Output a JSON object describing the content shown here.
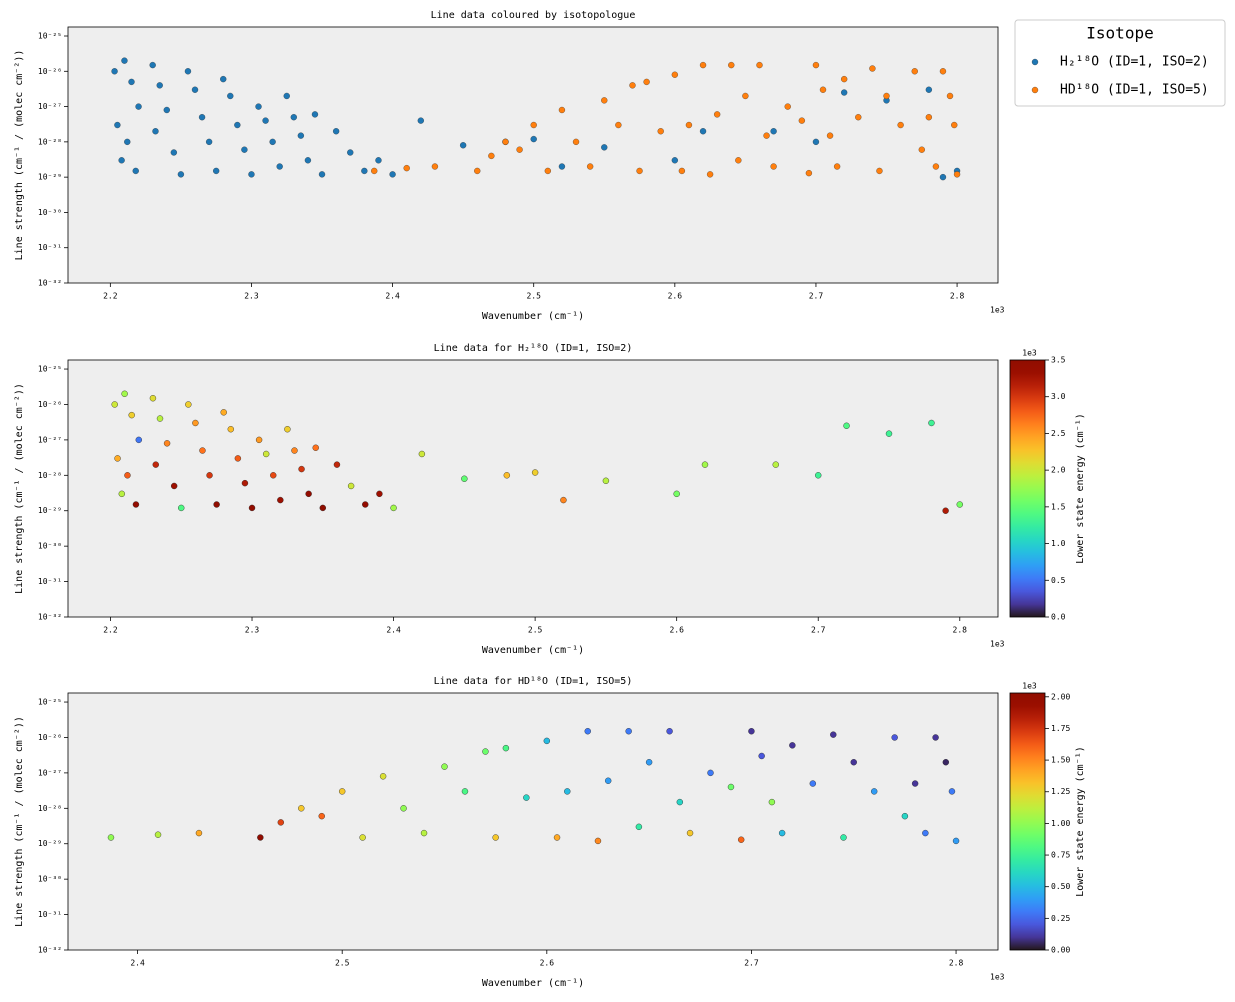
{
  "chart_data": [
    {
      "type": "scatter",
      "title": "Line data coloured by isotopologue",
      "xlabel": "Wavenumber (cm⁻¹)",
      "ylabel": "Line strength (cm⁻¹ / (molec cm⁻²))",
      "x_offset_text": "1e3",
      "xlim": [
        2.17,
        2.829
      ],
      "xticks": [
        2.2,
        2.3,
        2.4,
        2.5,
        2.6,
        2.7,
        2.8
      ],
      "ylim": [
        1e-32,
        1.8e-25
      ],
      "yscale": "log",
      "yticks": [
        {
          "value": 1e-32,
          "label": "10⁻³²"
        },
        {
          "value": 1e-31,
          "label": "10⁻³¹"
        },
        {
          "value": 1e-30,
          "label": "10⁻³⁰"
        },
        {
          "value": 1e-29,
          "label": "10⁻²⁹"
        },
        {
          "value": 1e-28,
          "label": "10⁻²⁸"
        },
        {
          "value": 1e-27,
          "label": "10⁻²⁷"
        },
        {
          "value": 1e-26,
          "label": "10⁻²⁶"
        },
        {
          "value": 1e-25,
          "label": "10⁻²⁵"
        }
      ],
      "legend": "outside-right",
      "legend_title": "Isotope",
      "series": [
        {
          "name": "H₂¹⁸O (ID=1, ISO=2)",
          "color": "#1f77b4",
          "x": [
            2.203,
            2.21,
            2.215,
            2.22,
            2.205,
            2.212,
            2.208,
            2.218,
            2.23,
            2.235,
            2.24,
            2.232,
            2.245,
            2.25,
            2.255,
            2.26,
            2.265,
            2.27,
            2.275,
            2.28,
            2.285,
            2.29,
            2.295,
            2.3,
            2.305,
            2.31,
            2.315,
            2.32,
            2.325,
            2.33,
            2.335,
            2.34,
            2.345,
            2.35,
            2.36,
            2.37,
            2.38,
            2.39,
            2.4,
            2.42,
            2.45,
            2.48,
            2.5,
            2.52,
            2.55,
            2.6,
            2.62,
            2.67,
            2.7,
            2.72,
            2.75,
            2.78,
            2.79,
            2.8
          ],
          "values": [
            1e-26,
            2e-26,
            5e-27,
            1e-27,
            3e-28,
            1e-28,
            3e-29,
            1.5e-29,
            1.5e-26,
            4e-27,
            8e-28,
            2e-28,
            5e-29,
            1.2e-29,
            1e-26,
            3e-27,
            5e-28,
            1e-28,
            1.5e-29,
            6e-27,
            2e-27,
            3e-28,
            6e-29,
            1.2e-29,
            1e-27,
            4e-28,
            1e-28,
            2e-29,
            2e-27,
            5e-28,
            1.5e-28,
            3e-29,
            6e-28,
            1.2e-29,
            2e-28,
            5e-29,
            1.5e-29,
            3e-29,
            1.2e-29,
            4e-28,
            8e-29,
            1e-28,
            1.2e-28,
            2e-29,
            7e-29,
            3e-29,
            2e-28,
            2e-28,
            1e-28,
            2.5e-27,
            1.5e-27,
            3e-27,
            1e-29,
            1.5e-29
          ]
        },
        {
          "name": "HD¹⁸O (ID=1, ISO=5)",
          "color": "#ff7f0e",
          "x": [
            2.387,
            2.41,
            2.43,
            2.46,
            2.47,
            2.48,
            2.49,
            2.5,
            2.51,
            2.52,
            2.53,
            2.54,
            2.55,
            2.56,
            2.57,
            2.575,
            2.58,
            2.59,
            2.6,
            2.605,
            2.61,
            2.62,
            2.625,
            2.63,
            2.64,
            2.645,
            2.65,
            2.66,
            2.665,
            2.67,
            2.68,
            2.69,
            2.695,
            2.7,
            2.705,
            2.71,
            2.715,
            2.72,
            2.73,
            2.74,
            2.745,
            2.75,
            2.76,
            2.77,
            2.775,
            2.78,
            2.785,
            2.79,
            2.795,
            2.798,
            2.8
          ],
          "values": [
            1.5e-29,
            1.8e-29,
            2e-29,
            1.5e-29,
            4e-29,
            1e-28,
            6e-29,
            3e-28,
            1.5e-29,
            8e-28,
            1e-28,
            2e-29,
            1.5e-27,
            3e-28,
            4e-27,
            1.5e-29,
            5e-27,
            2e-28,
            8e-27,
            1.5e-29,
            3e-28,
            1.5e-26,
            1.2e-29,
            6e-28,
            1.5e-26,
            3e-29,
            2e-27,
            1.5e-26,
            1.5e-28,
            2e-29,
            1e-27,
            4e-28,
            1.3e-29,
            1.5e-26,
            3e-27,
            1.5e-28,
            2e-29,
            6e-27,
            5e-28,
            1.2e-26,
            1.5e-29,
            2e-27,
            3e-28,
            1e-26,
            6e-29,
            5e-28,
            2e-29,
            1e-26,
            2e-27,
            3e-28,
            1.2e-29
          ]
        }
      ]
    },
    {
      "type": "scatter",
      "title": "Line data for H₂¹⁸O (ID=1, ISO=2)",
      "xlabel": "Wavenumber (cm⁻¹)",
      "ylabel": "Line strength (cm⁻¹ / (molec cm⁻²))",
      "x_offset_text": "1e3",
      "xlim": [
        2.17,
        2.827
      ],
      "xticks": [
        2.2,
        2.3,
        2.4,
        2.5,
        2.6,
        2.7,
        2.8
      ],
      "ylim": [
        1e-32,
        1.8e-25
      ],
      "yscale": "log",
      "yticks": [
        {
          "value": 1e-32,
          "label": "10⁻³²"
        },
        {
          "value": 1e-31,
          "label": "10⁻³¹"
        },
        {
          "value": 1e-30,
          "label": "10⁻³⁰"
        },
        {
          "value": 1e-29,
          "label": "10⁻²⁹"
        },
        {
          "value": 1e-28,
          "label": "10⁻²⁸"
        },
        {
          "value": 1e-27,
          "label": "10⁻²⁷"
        },
        {
          "value": 1e-26,
          "label": "10⁻²⁶"
        },
        {
          "value": 1e-25,
          "label": "10⁻²⁵"
        }
      ],
      "x": [
        2.203,
        2.21,
        2.215,
        2.22,
        2.205,
        2.212,
        2.208,
        2.218,
        2.23,
        2.235,
        2.24,
        2.232,
        2.245,
        2.25,
        2.255,
        2.26,
        2.265,
        2.27,
        2.275,
        2.28,
        2.285,
        2.29,
        2.295,
        2.3,
        2.305,
        2.31,
        2.315,
        2.32,
        2.325,
        2.33,
        2.335,
        2.34,
        2.345,
        2.35,
        2.36,
        2.37,
        2.38,
        2.39,
        2.4,
        2.42,
        2.45,
        2.48,
        2.5,
        2.52,
        2.55,
        2.6,
        2.62,
        2.67,
        2.7,
        2.72,
        2.75,
        2.78,
        2.79,
        2.8
      ],
      "values": [
        1e-26,
        2e-26,
        5e-27,
        1e-27,
        3e-28,
        1e-28,
        3e-29,
        1.5e-29,
        1.5e-26,
        4e-27,
        8e-28,
        2e-28,
        5e-29,
        1.2e-29,
        1e-26,
        3e-27,
        5e-28,
        1e-28,
        1.5e-29,
        6e-27,
        2e-27,
        3e-28,
        6e-29,
        1.2e-29,
        1e-27,
        4e-28,
        1e-28,
        2e-29,
        2e-27,
        5e-28,
        1.5e-28,
        3e-29,
        6e-28,
        1.2e-29,
        2e-28,
        5e-29,
        1.5e-29,
        3e-29,
        1.2e-29,
        4e-28,
        8e-29,
        1e-28,
        1.2e-28,
        2e-29,
        7e-29,
        3e-29,
        2e-28,
        2e-28,
        1e-28,
        2.5e-27,
        1.5e-27,
        3e-27,
        1e-29,
        1.5e-29
      ],
      "c": [
        2.0,
        1.8,
        2.2,
        0.5,
        2.4,
        2.8,
        1.9,
        3.4,
        2.1,
        1.9,
        2.6,
        3.1,
        3.3,
        1.4,
        2.2,
        2.5,
        2.7,
        3.0,
        3.5,
        2.4,
        2.3,
        2.8,
        3.2,
        3.4,
        2.5,
        2.0,
        2.9,
        3.3,
        2.2,
        2.6,
        3.0,
        3.4,
        2.7,
        3.5,
        3.1,
        2.0,
        3.4,
        3.3,
        1.8,
        2.0,
        1.5,
        2.3,
        2.2,
        2.6,
        1.9,
        1.6,
        1.8,
        1.9,
        1.3,
        1.4,
        1.3,
        1.3,
        3.2,
        1.6
      ],
      "colorbar": {
        "label": "Lower state energy (cm⁻¹)",
        "cmap": "turbo",
        "offset_text": "1e3",
        "clim": [
          0,
          3.5
        ],
        "ticks": [
          {
            "value": 0,
            "label": "0.0"
          },
          0.5,
          {
            "value": 1,
            "label": "1.0"
          },
          1.5,
          {
            "value": 2,
            "label": "2.0"
          },
          2.5,
          {
            "value": 3,
            "label": "3.0"
          },
          3.5
        ]
      }
    },
    {
      "type": "scatter",
      "title": "Line data for HD¹⁸O (ID=1, ISO=5)",
      "xlabel": "Wavenumber (cm⁻¹)",
      "ylabel": "Line strength (cm⁻¹ / (molec cm⁻²))",
      "x_offset_text": "1e3",
      "xlim": [
        2.366,
        2.8205
      ],
      "xticks": [
        2.4,
        2.5,
        2.6,
        2.7,
        2.8
      ],
      "ylim": [
        1e-32,
        1.8e-25
      ],
      "yscale": "log",
      "yticks": [
        {
          "value": 1e-32,
          "label": "10⁻³²"
        },
        {
          "value": 1e-31,
          "label": "10⁻³¹"
        },
        {
          "value": 1e-30,
          "label": "10⁻³⁰"
        },
        {
          "value": 1e-29,
          "label": "10⁻²⁹"
        },
        {
          "value": 1e-28,
          "label": "10⁻²⁸"
        },
        {
          "value": 1e-27,
          "label": "10⁻²⁷"
        },
        {
          "value": 1e-26,
          "label": "10⁻²⁶"
        },
        {
          "value": 1e-25,
          "label": "10⁻²⁵"
        }
      ],
      "x": [
        2.387,
        2.41,
        2.43,
        2.46,
        2.47,
        2.48,
        2.49,
        2.5,
        2.51,
        2.52,
        2.53,
        2.54,
        2.55,
        2.56,
        2.57,
        2.575,
        2.58,
        2.59,
        2.6,
        2.605,
        2.61,
        2.62,
        2.625,
        2.63,
        2.64,
        2.645,
        2.65,
        2.66,
        2.665,
        2.67,
        2.68,
        2.69,
        2.695,
        2.7,
        2.705,
        2.71,
        2.715,
        2.72,
        2.73,
        2.74,
        2.745,
        2.75,
        2.76,
        2.77,
        2.775,
        2.78,
        2.785,
        2.79,
        2.795,
        2.798,
        2.8
      ],
      "values": [
        1.5e-29,
        1.8e-29,
        2e-29,
        1.5e-29,
        4e-29,
        1e-28,
        6e-29,
        3e-28,
        1.5e-29,
        8e-28,
        1e-28,
        2e-29,
        1.5e-27,
        3e-28,
        4e-27,
        1.5e-29,
        5e-27,
        2e-28,
        8e-27,
        1.5e-29,
        3e-28,
        1.5e-26,
        1.2e-29,
        6e-28,
        1.5e-26,
        3e-29,
        2e-27,
        1.5e-26,
        1.5e-28,
        2e-29,
        1e-27,
        4e-28,
        1.3e-29,
        1.5e-26,
        3e-27,
        1.5e-28,
        2e-29,
        6e-27,
        5e-28,
        1.2e-26,
        1.5e-29,
        2e-27,
        3e-28,
        1e-26,
        6e-29,
        5e-28,
        2e-29,
        1e-26,
        2e-27,
        3e-28,
        1.2e-29
      ],
      "c": [
        1.0,
        1.1,
        1.4,
        2.0,
        1.7,
        1.3,
        1.6,
        1.3,
        1.2,
        1.2,
        1.0,
        1.1,
        1.0,
        0.8,
        0.9,
        1.3,
        0.8,
        0.6,
        0.5,
        1.4,
        0.5,
        0.3,
        1.5,
        0.4,
        0.3,
        0.7,
        0.4,
        0.2,
        0.6,
        1.3,
        0.3,
        0.9,
        1.6,
        0.1,
        0.2,
        1.0,
        0.5,
        0.1,
        0.3,
        0.1,
        0.7,
        0.1,
        0.4,
        0.2,
        0.6,
        0.1,
        0.3,
        0.1,
        0.05,
        0.3,
        0.4
      ],
      "colorbar": {
        "label": "Lower state energy (cm⁻¹)",
        "cmap": "turbo",
        "offset_text": "1e3",
        "clim": [
          0,
          2.03
        ],
        "ticks": [
          {
            "value": 0,
            "label": "0.00"
          },
          0.25,
          {
            "value": 0.5,
            "label": "0.50"
          },
          0.75,
          {
            "value": 1,
            "label": "1.00"
          },
          1.25,
          {
            "value": 1.5,
            "label": "1.50"
          },
          1.75,
          {
            "value": 2,
            "label": "2.00"
          }
        ]
      }
    }
  ]
}
